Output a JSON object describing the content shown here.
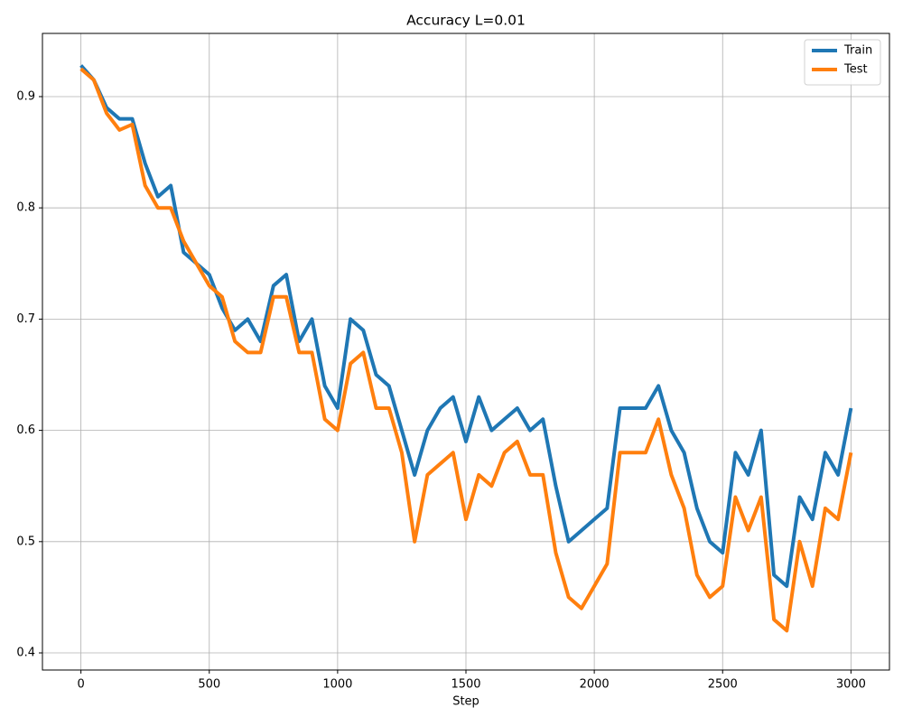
{
  "chart_data": {
    "type": "line",
    "title": "Accuracy L=0.01",
    "x_label": "Step",
    "x": [
      0,
      50,
      100,
      150,
      200,
      250,
      300,
      350,
      400,
      450,
      500,
      550,
      600,
      650,
      700,
      750,
      800,
      850,
      900,
      950,
      1000,
      1050,
      1100,
      1150,
      1200,
      1250,
      1300,
      1350,
      1400,
      1450,
      1500,
      1550,
      1600,
      1650,
      1700,
      1750,
      1800,
      1850,
      1900,
      1950,
      2000,
      2050,
      2100,
      2150,
      2200,
      2250,
      2300,
      2350,
      2400,
      2450,
      2500,
      2550,
      2600,
      2650,
      2700,
      2750,
      2800,
      2850,
      2900,
      2950,
      3000
    ],
    "series": [
      {
        "name": "Train",
        "color": "#1f77b4",
        "values": [
          0.928,
          0.915,
          0.89,
          0.88,
          0.88,
          0.84,
          0.81,
          0.82,
          0.76,
          0.75,
          0.74,
          0.71,
          0.69,
          0.7,
          0.68,
          0.73,
          0.74,
          0.68,
          0.7,
          0.64,
          0.62,
          0.7,
          0.69,
          0.65,
          0.64,
          0.6,
          0.56,
          0.6,
          0.62,
          0.63,
          0.59,
          0.63,
          0.6,
          0.61,
          0.62,
          0.6,
          0.61,
          0.55,
          0.5,
          0.51,
          0.52,
          0.53,
          0.62,
          0.62,
          0.62,
          0.64,
          0.6,
          0.58,
          0.53,
          0.5,
          0.49,
          0.58,
          0.56,
          0.6,
          0.47,
          0.46,
          0.54,
          0.52,
          0.58,
          0.56,
          0.62
        ]
      },
      {
        "name": "Test",
        "color": "#ff7f0e",
        "values": [
          0.925,
          0.915,
          0.885,
          0.87,
          0.875,
          0.82,
          0.8,
          0.8,
          0.77,
          0.75,
          0.73,
          0.72,
          0.68,
          0.67,
          0.67,
          0.72,
          0.72,
          0.67,
          0.67,
          0.61,
          0.6,
          0.66,
          0.67,
          0.62,
          0.62,
          0.58,
          0.5,
          0.56,
          0.57,
          0.58,
          0.52,
          0.56,
          0.55,
          0.58,
          0.59,
          0.56,
          0.56,
          0.49,
          0.45,
          0.44,
          0.46,
          0.48,
          0.58,
          0.58,
          0.58,
          0.61,
          0.56,
          0.53,
          0.47,
          0.45,
          0.46,
          0.54,
          0.51,
          0.54,
          0.43,
          0.42,
          0.5,
          0.46,
          0.53,
          0.52,
          0.58
        ]
      }
    ],
    "xlim": [
      -150,
      3150
    ],
    "ylim": [
      0.3846,
      0.9568
    ],
    "xticks": [
      0,
      500,
      1000,
      1500,
      2000,
      2500,
      3000
    ],
    "yticks": [
      0.4,
      0.5,
      0.6,
      0.7,
      0.8,
      0.9
    ],
    "grid": true,
    "legend": "upper-right"
  }
}
